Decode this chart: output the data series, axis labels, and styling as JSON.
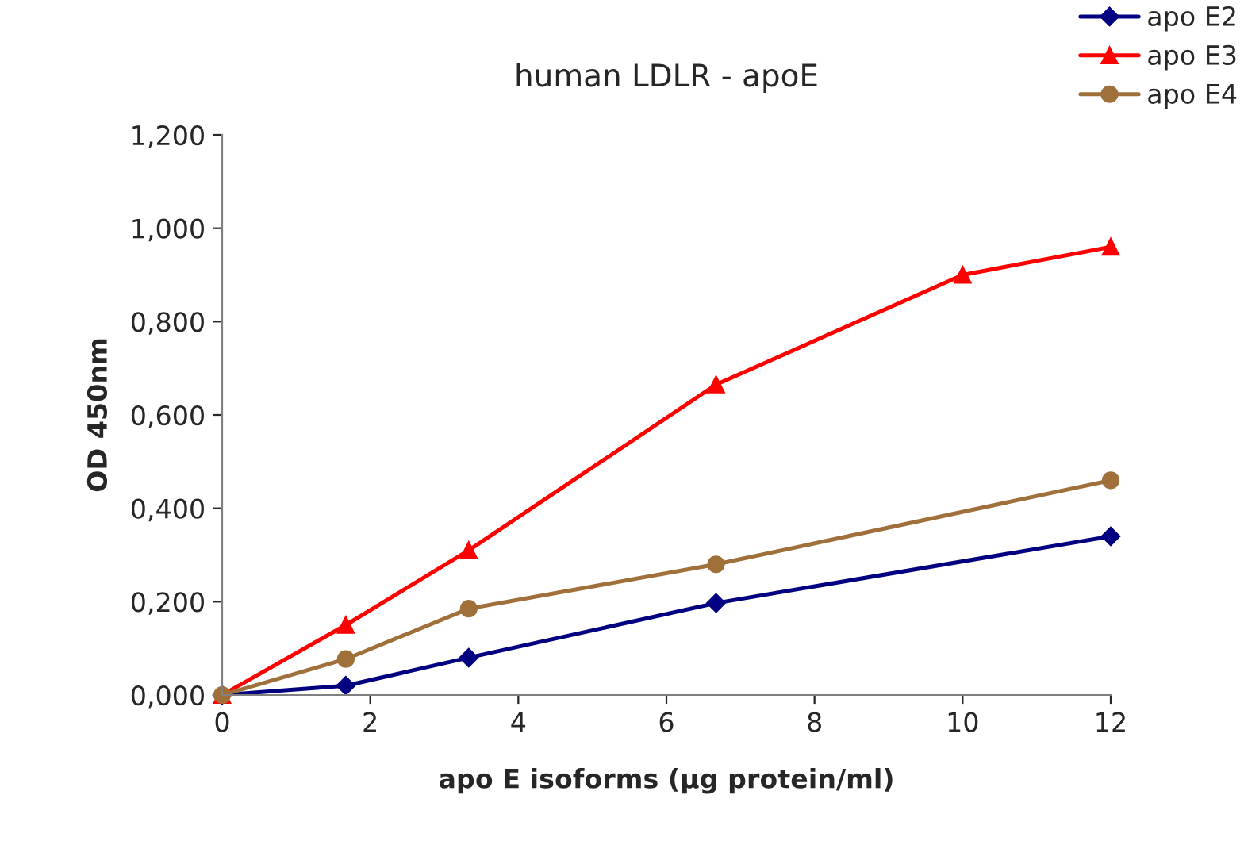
{
  "chart_data": {
    "type": "line",
    "title": "human LDLR - apoE",
    "xlabel": "apo E isoforms (µg protein/ml)",
    "ylabel": "OD 450nm",
    "xlim": [
      0,
      12
    ],
    "xticks": [
      0,
      2,
      4,
      6,
      8,
      10,
      12
    ],
    "ylim": [
      0,
      1.2
    ],
    "yticks": [
      {
        "value": 0,
        "label": "0,000"
      },
      {
        "value": 0.2,
        "label": "0,200"
      },
      {
        "value": 0.4,
        "label": "0,400"
      },
      {
        "value": 0.6,
        "label": "0,600"
      },
      {
        "value": 0.8,
        "label": "0,800"
      },
      {
        "value": 1.0,
        "label": "1,000"
      },
      {
        "value": 1.2,
        "label": "1,200"
      }
    ],
    "grid": false,
    "legend": "top right",
    "series": [
      {
        "name": "apo E2",
        "color": "#000080",
        "marker": "diamond",
        "x": [
          0,
          1.67,
          3.33,
          6.67,
          12
        ],
        "values": [
          0,
          0.02,
          0.08,
          0.197,
          0.34
        ]
      },
      {
        "name": "apo E3",
        "color": "#ff0000",
        "marker": "triangle",
        "x": [
          0,
          1.67,
          3.33,
          6.67,
          10,
          12
        ],
        "values": [
          0,
          0.15,
          0.31,
          0.665,
          0.9,
          0.96
        ]
      },
      {
        "name": "apo E4",
        "color": "#a0703a",
        "marker": "circle",
        "x": [
          0,
          1.67,
          3.33,
          6.67,
          12
        ],
        "values": [
          0,
          0.077,
          0.185,
          0.28,
          0.46
        ]
      }
    ]
  }
}
